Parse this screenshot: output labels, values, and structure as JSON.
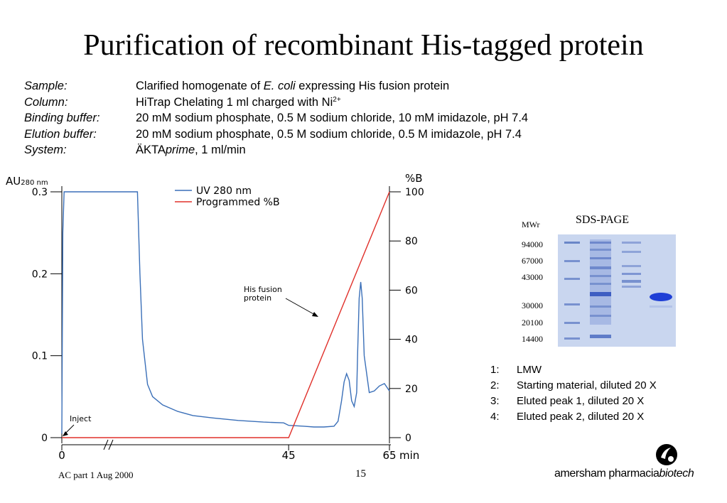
{
  "slide": {
    "title": "Purification of recombinant His-tagged protein",
    "footer_left": "AC part 1 Aug 2000",
    "page_number": "15",
    "logo_text_main": "amersham pharmacia",
    "logo_text_tail": "biotech"
  },
  "info": {
    "sample_label": "Sample:",
    "sample_pre": "Clarified homogenate of ",
    "sample_em": "E. coli",
    "sample_post": " expressing His fusion protein",
    "column_label": "Column:",
    "column_value": "HiTrap Chelating 1 ml charged with Ni",
    "column_sup": "2+",
    "binding_label": "Binding buffer:",
    "binding_value": "20 mM sodium phosphate, 0.5 M sodium chloride, 10 mM imidazole, pH 7.4",
    "elution_label": "Elution buffer:",
    "elution_value": "20 mM sodium phosphate, 0.5 M sodium chloride, 0.5 M imidazole, pH 7.4",
    "system_label": "System:",
    "system_pre": "ÄKTA",
    "system_em": "prime",
    "system_post": ", 1 ml/min"
  },
  "chart_data": {
    "type": "line",
    "ylabel_left": "AU",
    "ylabel_left_sub": "280 nm",
    "ylabel_right": "%B",
    "xlabel_unit": "min",
    "x_ticks": [
      "0",
      "45",
      "65"
    ],
    "y_left_ticks": [
      "0",
      "0.1",
      "0.2",
      "0.3"
    ],
    "y_right_ticks": [
      "0",
      "20",
      "40",
      "60",
      "80",
      "100"
    ],
    "ylim_left": [
      0,
      0.3
    ],
    "ylim_right": [
      0,
      100
    ],
    "x_axis_break": true,
    "legend_position": "top",
    "series": [
      {
        "name": "UV 280 nm",
        "color": "#3a6fb8",
        "x": [
          0,
          0.2,
          0.45,
          0.7,
          1,
          1.5,
          3,
          6,
          12,
          14,
          15,
          15.5,
          16,
          17,
          18,
          20,
          23,
          26,
          30,
          35,
          40,
          44,
          45,
          48,
          50,
          52,
          54,
          54.8,
          55.5,
          56,
          56.5,
          57,
          57.5,
          58,
          58.5,
          58.7,
          59,
          59.3,
          59.6,
          60,
          61,
          62,
          63,
          64,
          65
        ],
        "y": [
          0.005,
          0.25,
          0.3,
          0.3,
          0.3,
          0.3,
          0.3,
          0.3,
          0.3,
          0.3,
          0.3,
          0.2,
          0.12,
          0.065,
          0.05,
          0.04,
          0.032,
          0.027,
          0.024,
          0.021,
          0.019,
          0.018,
          0.015,
          0.014,
          0.013,
          0.013,
          0.014,
          0.02,
          0.045,
          0.068,
          0.078,
          0.07,
          0.045,
          0.038,
          0.055,
          0.105,
          0.17,
          0.19,
          0.17,
          0.1,
          0.055,
          0.057,
          0.063,
          0.066,
          0.057
        ]
      },
      {
        "name": "Programmed %B",
        "color": "#e0302a",
        "x": [
          0,
          45,
          65
        ],
        "y": [
          0,
          0,
          100
        ]
      }
    ],
    "annotations": [
      {
        "label": "Inject",
        "x": 0
      },
      {
        "label_line1": "His fusion",
        "label_line2": "protein",
        "x": 59
      }
    ]
  },
  "gel": {
    "title": "SDS-PAGE",
    "mwr_label": "MWr",
    "markers": [
      "94000",
      "67000",
      "43000",
      "30000",
      "20100",
      "14400"
    ],
    "lanes": [
      {
        "num": "1:",
        "desc": "LMW"
      },
      {
        "num": "2:",
        "desc": "Starting material, diluted 20 X"
      },
      {
        "num": "3:",
        "desc": "Eluted peak 1, diluted 20 X"
      },
      {
        "num": "4:",
        "desc": "Eluted peak 2, diluted 20 X"
      }
    ]
  }
}
